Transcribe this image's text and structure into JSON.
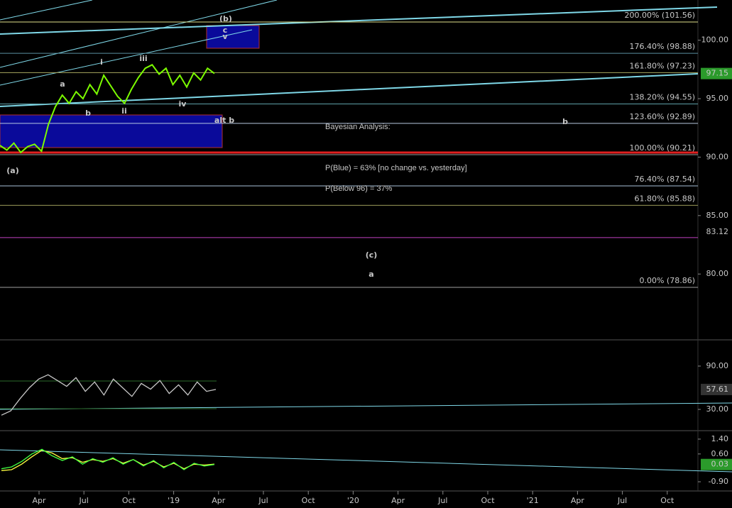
{
  "chart_data": [
    {
      "type": "line",
      "ylim": [
        74.43,
        103.44
      ],
      "yticks": [
        {
          "value": 100,
          "label": "100.00"
        },
        {
          "value": 95,
          "label": "95.00"
        },
        {
          "value": 90,
          "label": "90.00"
        },
        {
          "value": 85,
          "label": "85.00"
        },
        {
          "value": 80,
          "label": "80.00"
        }
      ],
      "series": [
        {
          "color": "#7cfc00",
          "values": [
            91.0,
            90.6,
            91.2,
            90.4,
            90.9,
            91.1,
            90.5,
            92.8,
            94.3,
            95.3,
            94.6,
            95.6,
            95.0,
            96.2,
            95.4,
            97.0,
            96.1,
            95.2,
            94.6,
            95.8,
            96.8,
            97.6,
            97.9,
            97.1,
            97.6,
            96.2,
            97.0,
            96.0,
            97.2,
            96.6,
            97.6,
            97.15
          ]
        }
      ],
      "levels": [
        {
          "value": 101.56,
          "label": "200.00% (101.56)",
          "color": "#e0e08c"
        },
        {
          "value": 98.88,
          "label": "176.40% (98.88)",
          "color": "#5a8fa0"
        },
        {
          "value": 97.23,
          "label": "161.80% (97.23)",
          "color": "#a8a860"
        },
        {
          "value": 94.55,
          "label": "138.20% (94.55)",
          "color": "#5fa0a8"
        },
        {
          "value": 92.89,
          "label": "123.60% (92.89)",
          "color": "#b8c8e0"
        },
        {
          "value": 90.21,
          "label": "100.00% (90.21)",
          "color": "#a0a0a0"
        },
        {
          "value": 87.54,
          "label": "76.40% (87.54)",
          "color": "#a8c0d8"
        },
        {
          "value": 85.88,
          "label": "61.80% (85.88)",
          "color": "#9a9a58"
        },
        {
          "value": 83.12,
          "label": "83.12",
          "color": "#c040c0"
        },
        {
          "value": 78.86,
          "label": "0.00% (78.86)",
          "color": "#a0a0a0"
        }
      ],
      "wave_labels": [
        "(b)",
        "c",
        "v",
        "i",
        "iii",
        "a",
        "b",
        "ii",
        "iv",
        "(a)",
        "alt b",
        "b",
        "(c)",
        "a"
      ],
      "annotations": [
        "Bayesian Analysis:",
        "P(Blue) = 63% [no change vs. yesterday]",
        "P(Below 96) = 37%"
      ]
    },
    {
      "type": "line",
      "ylim": [
        2.5,
        123.4
      ],
      "yticks": [
        {
          "value": 90,
          "label": "90.00"
        },
        {
          "value": 30,
          "label": "30.00"
        }
      ],
      "series": [
        {
          "color": "#c8c8c8",
          "values": [
            22,
            28,
            45,
            60,
            72,
            78,
            70,
            62,
            74,
            55,
            68,
            50,
            72,
            60,
            48,
            66,
            58,
            70,
            52,
            64,
            50,
            68,
            55,
            57.61
          ]
        }
      ]
    },
    {
      "type": "line",
      "ylim": [
        -1.32,
        1.78
      ],
      "yticks": [
        {
          "value": 1.4,
          "label": "1.40"
        },
        {
          "value": 0.6,
          "label": "0.60"
        },
        {
          "value": -0.9,
          "label": "-0.90"
        }
      ],
      "series": [
        {
          "color": "#ffff40",
          "values": [
            -0.3,
            -0.25,
            0.05,
            0.45,
            0.8,
            0.65,
            0.35,
            0.4,
            0.15,
            0.3,
            0.2,
            0.35,
            0.1,
            0.3,
            0.0,
            0.2,
            -0.1,
            0.1,
            -0.2,
            0.05,
            0.0,
            0.05
          ]
        },
        {
          "color": "#40ff40",
          "values": [
            -0.2,
            -0.1,
            0.2,
            0.6,
            0.85,
            0.5,
            0.25,
            0.45,
            0.05,
            0.35,
            0.15,
            0.4,
            0.05,
            0.3,
            -0.05,
            0.25,
            -0.15,
            0.15,
            -0.25,
            0.1,
            -0.05,
            0.03
          ]
        }
      ]
    }
  ],
  "x_labels": [
    "Apr",
    "Jul",
    "Oct",
    "'19",
    "Apr",
    "Jul",
    "Oct",
    "'20",
    "Apr",
    "Jul",
    "Oct",
    "'21",
    "Apr",
    "Jul",
    "Oct"
  ]
}
